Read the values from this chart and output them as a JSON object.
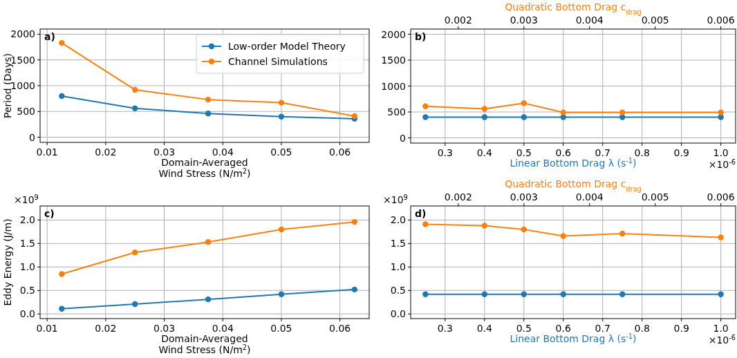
{
  "chart_data": [
    {
      "type": "line",
      "x": [
        0.0125,
        0.025,
        0.0375,
        0.05,
        0.0625
      ],
      "xlim": [
        0.0088,
        0.065
      ],
      "xticks": [
        0.01,
        0.02,
        0.03,
        0.04,
        0.05,
        0.06
      ],
      "ylim": [
        -100,
        2100
      ],
      "yticks": [
        0,
        500,
        1000,
        1500,
        2000
      ],
      "xlabel": "Domain-Averaged\nWind Stress (N/m$^{2}$)",
      "ylabel": "Period (Days)",
      "grid": true,
      "marker": "circle",
      "legend": "top right",
      "annotations": [
        "a)"
      ],
      "series": [
        {
          "name": "Low-order Model Theory",
          "color": "#1f77b4",
          "values": [
            800,
            560,
            460,
            400,
            360
          ]
        },
        {
          "name": "Channel Simulations",
          "color": "#ff7f0e",
          "values": [
            1830,
            920,
            730,
            670,
            410
          ]
        }
      ]
    },
    {
      "type": "line",
      "x": [
        0.25,
        0.4,
        0.5,
        0.6,
        0.75,
        1.0
      ],
      "xlim": [
        0.2125,
        1.0375
      ],
      "xticks": [
        0.3,
        0.4,
        0.5,
        0.6,
        0.7,
        0.8,
        0.9,
        {
          "value": 1.0,
          "label": "1.0"
        }
      ],
      "x2lim": [
        0.001275,
        0.006225
      ],
      "x2ticks": [
        0.002,
        0.003,
        0.004,
        0.005,
        0.006
      ],
      "ylim": [
        -100,
        2100
      ],
      "yticks": [
        0,
        500,
        1000,
        1500,
        2000
      ],
      "xlabel": "Linear Bottom Drag λ (s$^{-1}$)",
      "x2label": "Quadratic Bottom Drag c$_{drag}$",
      "grid": true,
      "marker": "circle",
      "annotations": [
        "b)",
        "×10$^{-6}$"
      ],
      "series": [
        {
          "color": "#1f77b4",
          "values": [
            400,
            400,
            400,
            400,
            400,
            400
          ]
        },
        {
          "color": "#ff7f0e",
          "values": [
            610,
            560,
            670,
            490,
            490,
            490
          ]
        }
      ]
    },
    {
      "type": "line",
      "x": [
        0.0125,
        0.025,
        0.0375,
        0.05,
        0.0625
      ],
      "xlim": [
        0.0088,
        0.065
      ],
      "xticks": [
        0.01,
        0.02,
        0.03,
        0.04,
        0.05,
        0.06
      ],
      "ylim": [
        -0.1,
        2.3
      ],
      "yticks": [
        {
          "value": 0,
          "label": "0.0"
        },
        0.5,
        {
          "value": 1,
          "label": "1.0"
        },
        1.5,
        {
          "value": 2,
          "label": "2.0"
        }
      ],
      "xlabel": "Domain-Averaged\nWind Stress (N/m$^{2}$)",
      "ylabel": "Eddy Energy (J/m)",
      "grid": true,
      "marker": "circle",
      "annotations": [
        "c)",
        "×10$^{9}$"
      ],
      "series": [
        {
          "color": "#1f77b4",
          "values": [
            0.11,
            0.21,
            0.31,
            0.42,
            0.52
          ]
        },
        {
          "color": "#ff7f0e",
          "values": [
            0.85,
            1.31,
            1.53,
            1.8,
            1.96
          ]
        }
      ]
    },
    {
      "type": "line",
      "x": [
        0.25,
        0.4,
        0.5,
        0.6,
        0.75,
        1.0
      ],
      "xlim": [
        0.2125,
        1.0375
      ],
      "xticks": [
        0.3,
        0.4,
        0.5,
        0.6,
        0.7,
        0.8,
        0.9,
        {
          "value": 1.0,
          "label": "1.0"
        }
      ],
      "x2lim": [
        0.001275,
        0.006225
      ],
      "x2ticks": [
        0.002,
        0.003,
        0.004,
        0.005,
        0.006
      ],
      "ylim": [
        -0.1,
        2.3
      ],
      "yticks": [
        {
          "value": 0,
          "label": "0.0"
        },
        0.5,
        {
          "value": 1,
          "label": "1.0"
        },
        1.5,
        {
          "value": 2,
          "label": "2.0"
        }
      ],
      "xlabel": "Linear Bottom Drag λ (s$^{-1}$)",
      "x2label": "Quadratic Bottom Drag c$_{drag}$",
      "grid": true,
      "marker": "circle",
      "annotations": [
        "d)",
        "×10$^{9}$",
        "×10$^{-6}$"
      ],
      "series": [
        {
          "color": "#1f77b4",
          "values": [
            0.42,
            0.42,
            0.42,
            0.42,
            0.42,
            0.42
          ]
        },
        {
          "color": "#ff7f0e",
          "values": [
            1.91,
            1.88,
            1.8,
            1.66,
            1.71,
            1.63
          ]
        }
      ]
    }
  ]
}
